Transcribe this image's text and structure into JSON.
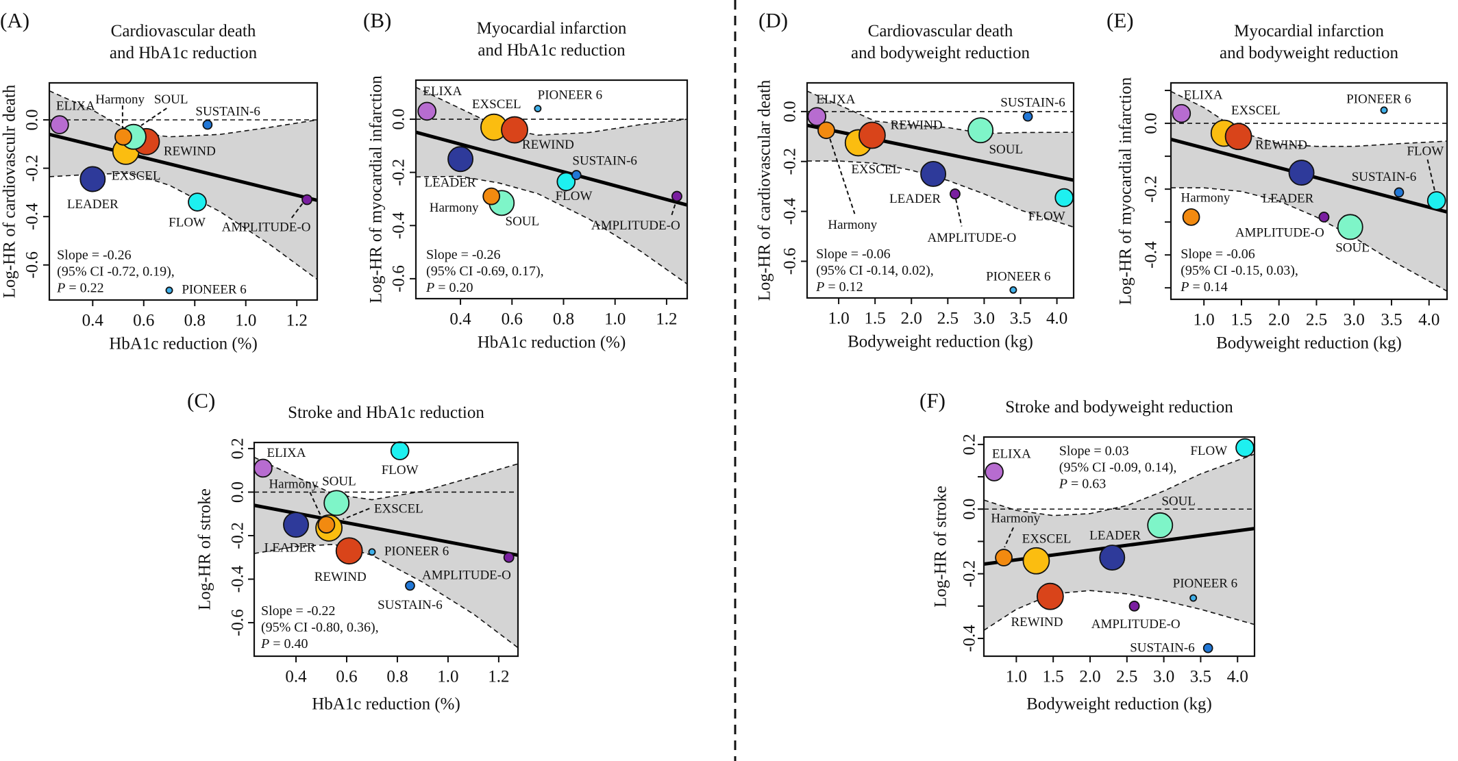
{
  "trials": {
    "ELIXA": {
      "color": "#b76cd0",
      "relative_size": 0.68
    },
    "LEADER": {
      "color": "#2e3a9a",
      "relative_size": 0.95
    },
    "Harmony": {
      "color": "#f28a10",
      "relative_size": 0.63
    },
    "EXSCEL": {
      "color": "#fbbd10",
      "relative_size": 1.0
    },
    "SOUL": {
      "color": "#7ef5c8",
      "relative_size": 0.95
    },
    "REWIND": {
      "color": "#d9441a",
      "relative_size": 1.0
    },
    "PIONEER 6": {
      "color": "#3fb0ea",
      "relative_size": 0.24
    },
    "FLOW": {
      "color": "#1ef0f0",
      "relative_size": 0.68
    },
    "SUSTAIN-6": {
      "color": "#2177d6",
      "relative_size": 0.34
    },
    "AMPLITUDE-O": {
      "color": "#7a1fa0",
      "relative_size": 0.37
    }
  },
  "chart_data": [
    {
      "id": "A",
      "panel_label": "(A)",
      "type": "scatter",
      "title": [
        "Cardiovascular death",
        "and HbA1c reduction"
      ],
      "xlabel": "HbA1c reduction (%)",
      "ylabel": "Log-HR of cardiovasculr death",
      "xlim": [
        0.23,
        1.28
      ],
      "ylim": [
        -0.745,
        0.153
      ],
      "xticks": [
        0.4,
        0.6,
        0.8,
        1.0,
        1.2
      ],
      "xticklabels": [
        "0.4",
        "0.6",
        "0.8",
        "1.0",
        "1.2"
      ],
      "yticks": [
        0.0,
        -0.2,
        -0.4,
        -0.6
      ],
      "yticklabels": [
        "0.0",
        "-0.2",
        "-0.4",
        "-0.6"
      ],
      "reference_line_y": 0.0,
      "regression": {
        "intercept": 0.0,
        "slope": -0.26
      },
      "ci_band": {
        "x": [
          0.23,
          0.4,
          0.55,
          0.7,
          0.9,
          1.1,
          1.28
        ],
        "upper": [
          0.12,
          0.04,
          -0.05,
          -0.07,
          -0.06,
          -0.03,
          0.0
        ],
        "lower": [
          -0.235,
          -0.225,
          -0.22,
          -0.27,
          -0.38,
          -0.52,
          -0.66
        ]
      },
      "annotation": {
        "line1": "Slope = -0.26",
        "line2": "(95% CI -0.72, 0.19),",
        "p_symbol": "P",
        "p_value": " = 0.22"
      },
      "points": [
        {
          "trial": "ELIXA",
          "x": 0.27,
          "y": -0.02
        },
        {
          "trial": "LEADER",
          "x": 0.4,
          "y": -0.245
        },
        {
          "trial": "Harmony",
          "x": 0.52,
          "y": -0.07
        },
        {
          "trial": "EXSCEL",
          "x": 0.53,
          "y": -0.13
        },
        {
          "trial": "SOUL",
          "x": 0.56,
          "y": -0.07
        },
        {
          "trial": "REWIND",
          "x": 0.61,
          "y": -0.09
        },
        {
          "trial": "PIONEER 6",
          "x": 0.7,
          "y": -0.705
        },
        {
          "trial": "FLOW",
          "x": 0.81,
          "y": -0.34
        },
        {
          "trial": "SUSTAIN-6",
          "x": 0.85,
          "y": -0.02
        },
        {
          "trial": "AMPLITUDE-O",
          "x": 1.24,
          "y": -0.33
        }
      ]
    },
    {
      "id": "B",
      "panel_label": "(B)",
      "type": "scatter",
      "title": [
        "Myocardial infarction",
        "and HbA1c reduction"
      ],
      "xlabel": "HbA1c reduction (%)",
      "ylabel": "Log-HR of myocardial infarction",
      "xlim": [
        0.227,
        1.28
      ],
      "ylim": [
        -0.675,
        0.147
      ],
      "xticks": [
        0.4,
        0.6,
        0.8,
        1.0,
        1.2
      ],
      "xticklabels": [
        "0.4",
        "0.6",
        "0.8",
        "1.0",
        "1.2"
      ],
      "yticks": [
        0.0,
        -0.2,
        -0.4,
        -0.6
      ],
      "yticklabels": [
        "0.0",
        "-0.2",
        "-0.4",
        "-0.6"
      ],
      "reference_line_y": 0.0,
      "regression": {
        "intercept": 0.01,
        "slope": -0.26
      },
      "ci_band": {
        "x": [
          0.227,
          0.4,
          0.55,
          0.7,
          0.9,
          1.1,
          1.28
        ],
        "upper": [
          0.12,
          0.04,
          -0.03,
          -0.06,
          -0.05,
          -0.02,
          0.0
        ],
        "lower": [
          -0.217,
          -0.215,
          -0.24,
          -0.28,
          -0.376,
          -0.497,
          -0.62
        ]
      },
      "annotation": {
        "line1": "Slope = -0.26",
        "line2": "(95% CI -0.69, 0.17),",
        "p_symbol": "P",
        "p_value": " = 0.20"
      },
      "points": [
        {
          "trial": "ELIXA",
          "x": 0.27,
          "y": 0.03
        },
        {
          "trial": "LEADER",
          "x": 0.4,
          "y": -0.15
        },
        {
          "trial": "Harmony",
          "x": 0.52,
          "y": -0.29
        },
        {
          "trial": "EXSCEL",
          "x": 0.53,
          "y": -0.03
        },
        {
          "trial": "SOUL",
          "x": 0.56,
          "y": -0.315
        },
        {
          "trial": "REWIND",
          "x": 0.61,
          "y": -0.04
        },
        {
          "trial": "PIONEER 6",
          "x": 0.7,
          "y": 0.04
        },
        {
          "trial": "FLOW",
          "x": 0.81,
          "y": -0.235
        },
        {
          "trial": "SUSTAIN-6",
          "x": 0.85,
          "y": -0.21
        },
        {
          "trial": "AMPLITUDE-O",
          "x": 1.24,
          "y": -0.29
        }
      ]
    },
    {
      "id": "C",
      "panel_label": "(C)",
      "type": "scatter",
      "title": [
        "Stroke and HbA1c reduction"
      ],
      "xlabel": "HbA1c reduction (%)",
      "ylabel": "Log-HR of stroke",
      "xlim": [
        0.235,
        1.276
      ],
      "ylim": [
        -0.754,
        0.228
      ],
      "xticks": [
        0.4,
        0.6,
        0.8,
        1.0,
        1.2
      ],
      "xticklabels": [
        "0.4",
        "0.6",
        "0.8",
        "1.0",
        "1.2"
      ],
      "yticks": [
        0.2,
        0.0,
        -0.2,
        -0.4,
        -0.6
      ],
      "yticklabels": [
        "0.2",
        "0.0",
        "-0.2",
        "-0.4",
        "-0.6"
      ],
      "reference_line_y": 0.0,
      "regression": {
        "intercept": -0.009,
        "slope": -0.22
      },
      "ci_band": {
        "x": [
          0.235,
          0.4,
          0.55,
          0.7,
          0.9,
          1.1,
          1.276
        ],
        "upper": [
          0.16,
          0.07,
          -0.01,
          -0.035,
          0.004,
          0.07,
          0.13
        ],
        "lower": [
          -0.282,
          -0.25,
          -0.24,
          -0.29,
          -0.414,
          -0.56,
          -0.715
        ]
      },
      "annotation": {
        "line1": "Slope = -0.22",
        "line2": "(95% CI -0.80, 0.36),",
        "p_symbol": "P",
        "p_value": " = 0.40"
      },
      "points": [
        {
          "trial": "ELIXA",
          "x": 0.27,
          "y": 0.11
        },
        {
          "trial": "LEADER",
          "x": 0.4,
          "y": -0.15
        },
        {
          "trial": "EXSCEL",
          "x": 0.53,
          "y": -0.165
        },
        {
          "trial": "Harmony",
          "x": 0.52,
          "y": -0.15
        },
        {
          "trial": "SOUL",
          "x": 0.56,
          "y": -0.05
        },
        {
          "trial": "REWIND",
          "x": 0.61,
          "y": -0.27
        },
        {
          "trial": "PIONEER 6",
          "x": 0.7,
          "y": -0.275
        },
        {
          "trial": "FLOW",
          "x": 0.81,
          "y": 0.19
        },
        {
          "trial": "SUSTAIN-6",
          "x": 0.85,
          "y": -0.43
        },
        {
          "trial": "AMPLITUDE-O",
          "x": 1.24,
          "y": -0.3
        }
      ]
    },
    {
      "id": "D",
      "panel_label": "(D)",
      "type": "scatter",
      "title": [
        "Cardiovascular death",
        "and bodyweight reduction"
      ],
      "xlabel": "Bodyweight reduction (kg)",
      "ylabel": "Log-HR of cardiovascular death",
      "xlim": [
        0.566,
        4.23
      ],
      "ylim": [
        -0.747,
        0.115
      ],
      "xticks": [
        1.0,
        1.5,
        2.0,
        2.5,
        3.0,
        3.5,
        4.0
      ],
      "xticklabels": [
        "1.0",
        "1.5",
        "2.0",
        "2.5",
        "3.0",
        "3.5",
        "4.0"
      ],
      "yticks": [
        0.0,
        -0.2,
        -0.4,
        -0.6
      ],
      "yticklabels": [
        "0.0",
        "-0.2",
        "-0.4",
        "-0.6"
      ],
      "reference_line_y": 0.0,
      "regression": {
        "intercept": -0.021,
        "slope": -0.06
      },
      "ci_band": {
        "x": [
          0.566,
          1.0,
          1.5,
          2.0,
          2.5,
          3.0,
          3.5,
          4.23
        ],
        "upper": [
          0.082,
          0.027,
          -0.038,
          -0.054,
          -0.064,
          -0.088,
          -0.084,
          -0.083
        ],
        "lower": [
          -0.198,
          -0.198,
          -0.207,
          -0.235,
          -0.276,
          -0.33,
          -0.395,
          -0.463
        ]
      },
      "annotation": {
        "line1": "Slope = -0.06",
        "line2": "(95% CI -0.14, 0.02),",
        "p_symbol": "P",
        "p_value": " = 0.12"
      },
      "points": [
        {
          "trial": "ELIXA",
          "x": 0.7,
          "y": -0.02
        },
        {
          "trial": "Harmony",
          "x": 0.83,
          "y": -0.075
        },
        {
          "trial": "EXSCEL",
          "x": 1.27,
          "y": -0.125
        },
        {
          "trial": "REWIND",
          "x": 1.46,
          "y": -0.095
        },
        {
          "trial": "LEADER",
          "x": 2.3,
          "y": -0.25
        },
        {
          "trial": "AMPLITUDE-O",
          "x": 2.6,
          "y": -0.33
        },
        {
          "trial": "SOUL",
          "x": 2.95,
          "y": -0.075
        },
        {
          "trial": "PIONEER 6",
          "x": 3.4,
          "y": -0.715
        },
        {
          "trial": "SUSTAIN-6",
          "x": 3.6,
          "y": -0.02
        },
        {
          "trial": "FLOW",
          "x": 4.1,
          "y": -0.345
        }
      ]
    },
    {
      "id": "E",
      "panel_label": "(E)",
      "type": "scatter",
      "title": [
        "Myocardial infarction",
        "and bodyweight reduction"
      ],
      "xlabel": "Bodyweight reduction (kg)",
      "ylabel": "Log-HR of myocardial infarction",
      "xlim": [
        0.56,
        4.24
      ],
      "ylim": [
        -0.535,
        0.123
      ],
      "xticks": [
        1.0,
        1.5,
        2.0,
        2.5,
        3.0,
        3.5,
        4.0
      ],
      "xticklabels": [
        "1.0",
        "1.5",
        "2.0",
        "2.5",
        "3.0",
        "3.5",
        "4.0"
      ],
      "yticks": [
        0.1,
        0.0,
        -0.1,
        -0.2,
        -0.3,
        -0.4,
        -0.5
      ],
      "yticklabels": [
        "",
        "0.0",
        "",
        "-0.2",
        "",
        "-0.4",
        ""
      ],
      "reference_line_y": 0.0,
      "regression": {
        "intercept": -0.015,
        "slope": -0.06
      },
      "ci_band": {
        "x": [
          0.56,
          1.0,
          1.5,
          2.0,
          2.5,
          3.0,
          3.5,
          4.24
        ],
        "upper": [
          0.097,
          0.048,
          -0.028,
          -0.063,
          -0.07,
          -0.07,
          -0.063,
          -0.054
        ],
        "lower": [
          -0.196,
          -0.196,
          -0.207,
          -0.236,
          -0.285,
          -0.347,
          -0.417,
          -0.51
        ]
      },
      "annotation": {
        "line1": "Slope = -0.06",
        "line2": "(95% CI -0.15, 0.03),",
        "p_symbol": "P",
        "p_value": " = 0.14"
      },
      "points": [
        {
          "trial": "ELIXA",
          "x": 0.7,
          "y": 0.03
        },
        {
          "trial": "Harmony",
          "x": 0.83,
          "y": -0.285
        },
        {
          "trial": "EXSCEL",
          "x": 1.27,
          "y": -0.03
        },
        {
          "trial": "REWIND",
          "x": 1.46,
          "y": -0.04
        },
        {
          "trial": "LEADER",
          "x": 2.3,
          "y": -0.15
        },
        {
          "trial": "AMPLITUDE-O",
          "x": 2.6,
          "y": -0.285
        },
        {
          "trial": "SOUL",
          "x": 2.95,
          "y": -0.315
        },
        {
          "trial": "PIONEER 6",
          "x": 3.4,
          "y": 0.04
        },
        {
          "trial": "SUSTAIN-6",
          "x": 3.6,
          "y": -0.21
        },
        {
          "trial": "FLOW",
          "x": 4.1,
          "y": -0.235
        }
      ]
    },
    {
      "id": "F",
      "panel_label": "(F)",
      "type": "scatter",
      "title": [
        "Stroke and bodyweight reduction"
      ],
      "xlabel": "Bodyweight reduction (kg)",
      "ylabel": "Log-HR of stroke",
      "xlim": [
        0.56,
        4.23
      ],
      "ylim": [
        -0.455,
        0.223
      ],
      "xticks": [
        1.0,
        1.5,
        2.0,
        2.5,
        3.0,
        3.5,
        4.0
      ],
      "xticklabels": [
        "1.0",
        "1.5",
        "2.0",
        "2.5",
        "3.0",
        "3.5",
        "4.0"
      ],
      "yticks": [
        0.2,
        0.1,
        0.0,
        -0.1,
        -0.2,
        -0.3,
        -0.4
      ],
      "yticklabels": [
        "0.2",
        "",
        "0.0",
        "",
        "-0.2",
        "",
        "-0.4"
      ],
      "reference_line_y": 0.0,
      "regression": {
        "intercept": -0.187,
        "slope": 0.03
      },
      "ci_band": {
        "x": [
          0.56,
          1.0,
          1.5,
          2.0,
          2.5,
          3.0,
          3.5,
          4.23
        ],
        "upper": [
          0.028,
          -0.004,
          -0.02,
          -0.014,
          0.011,
          0.056,
          0.109,
          0.17
        ],
        "lower": [
          -0.375,
          -0.31,
          -0.262,
          -0.252,
          -0.262,
          -0.283,
          -0.31,
          -0.357
        ]
      },
      "annotation": {
        "line1": "Slope = 0.03",
        "line2": "(95% CI -0.09, 0.14),",
        "p_symbol": "P",
        "p_value": " = 0.63"
      },
      "points": [
        {
          "trial": "ELIXA",
          "x": 0.7,
          "y": 0.115
        },
        {
          "trial": "Harmony",
          "x": 0.83,
          "y": -0.15
        },
        {
          "trial": "EXSCEL",
          "x": 1.27,
          "y": -0.16
        },
        {
          "trial": "REWIND",
          "x": 1.46,
          "y": -0.27
        },
        {
          "trial": "LEADER",
          "x": 2.3,
          "y": -0.15
        },
        {
          "trial": "AMPLITUDE-O",
          "x": 2.6,
          "y": -0.3
        },
        {
          "trial": "SOUL",
          "x": 2.95,
          "y": -0.05
        },
        {
          "trial": "PIONEER 6",
          "x": 3.4,
          "y": -0.275
        },
        {
          "trial": "SUSTAIN-6",
          "x": 3.6,
          "y": -0.43
        },
        {
          "trial": "FLOW",
          "x": 4.1,
          "y": 0.19
        }
      ]
    }
  ]
}
